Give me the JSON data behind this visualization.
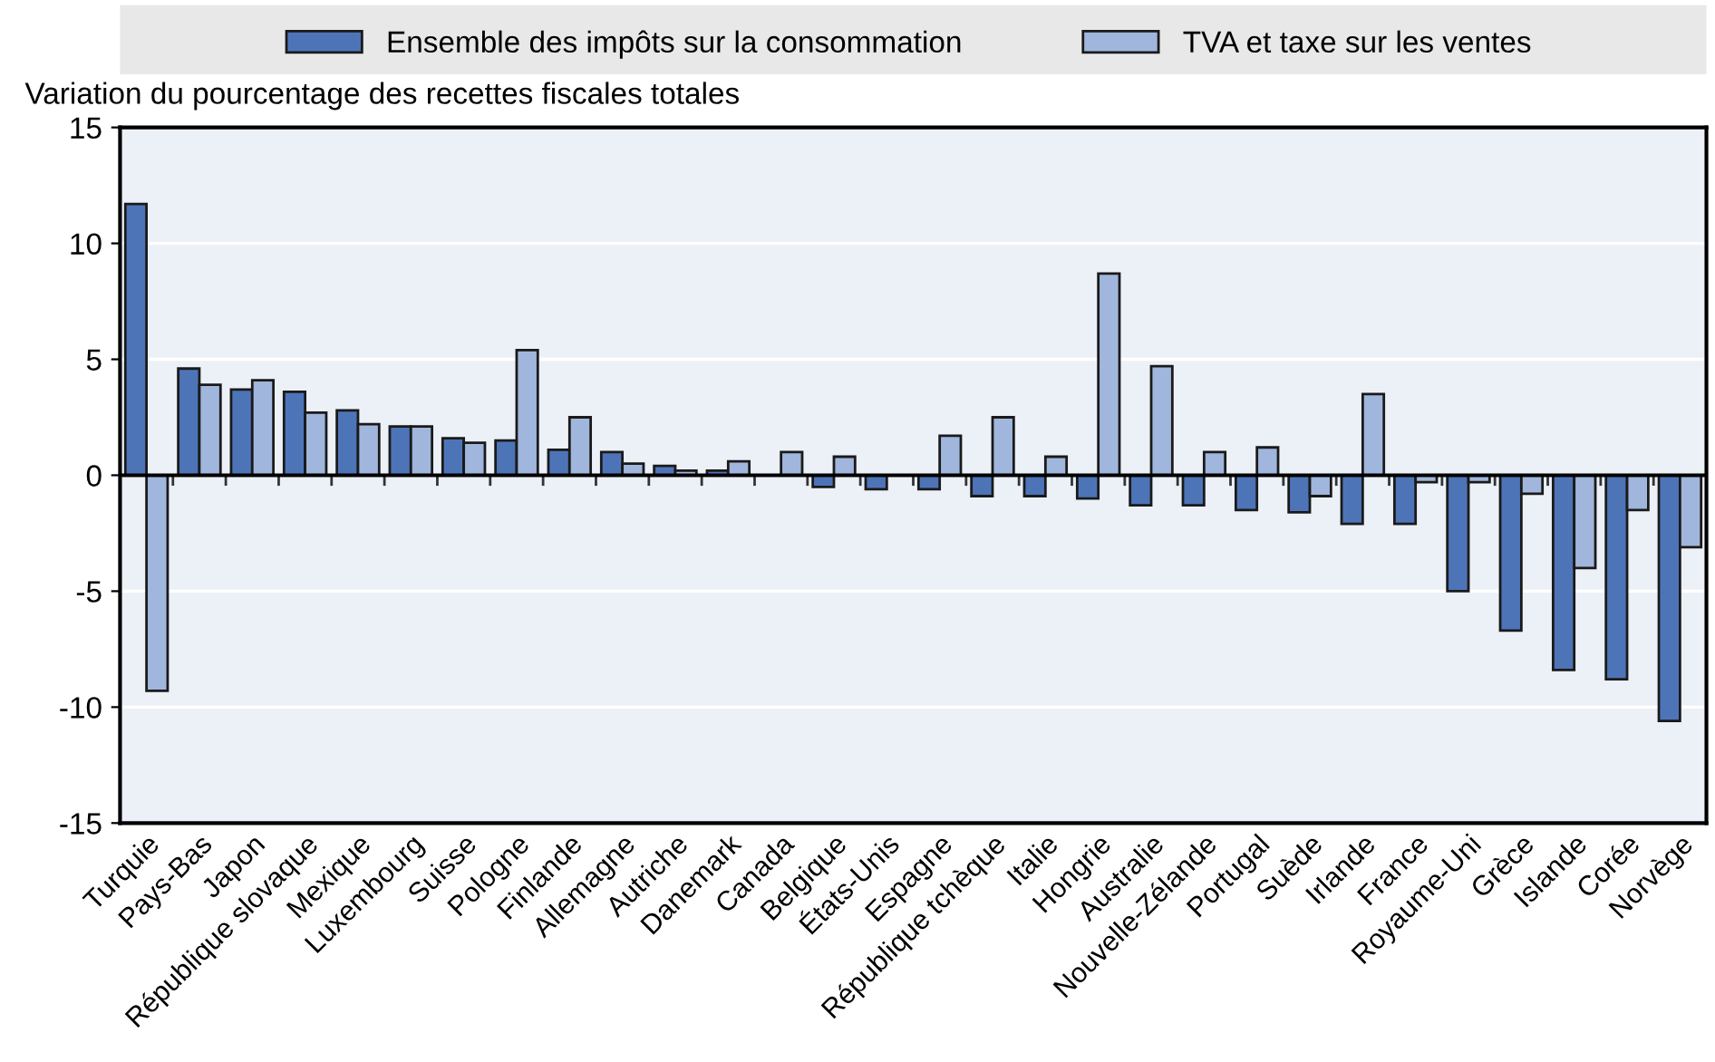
{
  "chart_data": {
    "type": "bar",
    "ylabel": "Variation du pourcentage des recettes fiscales totales",
    "categories": [
      "Turquie",
      "Pays-Bas",
      "Japon",
      "République slovaque",
      "Mexique",
      "Luxembourg",
      "Suisse",
      "Pologne",
      "Finlande",
      "Allemagne",
      "Autriche",
      "Danemark",
      "Canada",
      "Belgique",
      "États-Unis",
      "Espagne",
      "République tchèque",
      "Italie",
      "Hongrie",
      "Australie",
      "Nouvelle-Zélande",
      "Portugal",
      "Suède",
      "Irlande",
      "France",
      "Royaume-Uni",
      "Grèce",
      "Islande",
      "Corée",
      "Norvège"
    ],
    "series": [
      {
        "name": "Ensemble des impôts sur la consommation",
        "color": "#4e74b8",
        "values": [
          11.7,
          4.6,
          3.7,
          3.6,
          2.8,
          2.1,
          1.6,
          1.5,
          1.1,
          1.0,
          0.4,
          0.2,
          null,
          -0.5,
          -0.6,
          -0.6,
          -0.9,
          -0.9,
          -1.0,
          -1.3,
          -1.3,
          -1.5,
          -1.6,
          -2.1,
          -2.1,
          -5.0,
          -6.7,
          -8.4,
          -8.8,
          -10.6
        ]
      },
      {
        "name": "TVA et taxe sur les ventes",
        "color": "#a0b6dc",
        "values": [
          -9.3,
          3.9,
          4.1,
          2.7,
          2.2,
          2.1,
          1.4,
          5.4,
          2.5,
          0.5,
          0.2,
          0.6,
          1.0,
          0.8,
          null,
          1.7,
          2.5,
          0.8,
          8.7,
          4.7,
          1.0,
          1.2,
          -0.9,
          3.5,
          -0.3,
          -0.3,
          -0.8,
          -4.0,
          -1.5,
          -3.1
        ]
      }
    ],
    "ylim": [
      -15,
      15
    ],
    "yticks": [
      -15,
      -10,
      -5,
      0,
      5,
      10,
      15
    ],
    "grid": "y",
    "legend": "top"
  }
}
